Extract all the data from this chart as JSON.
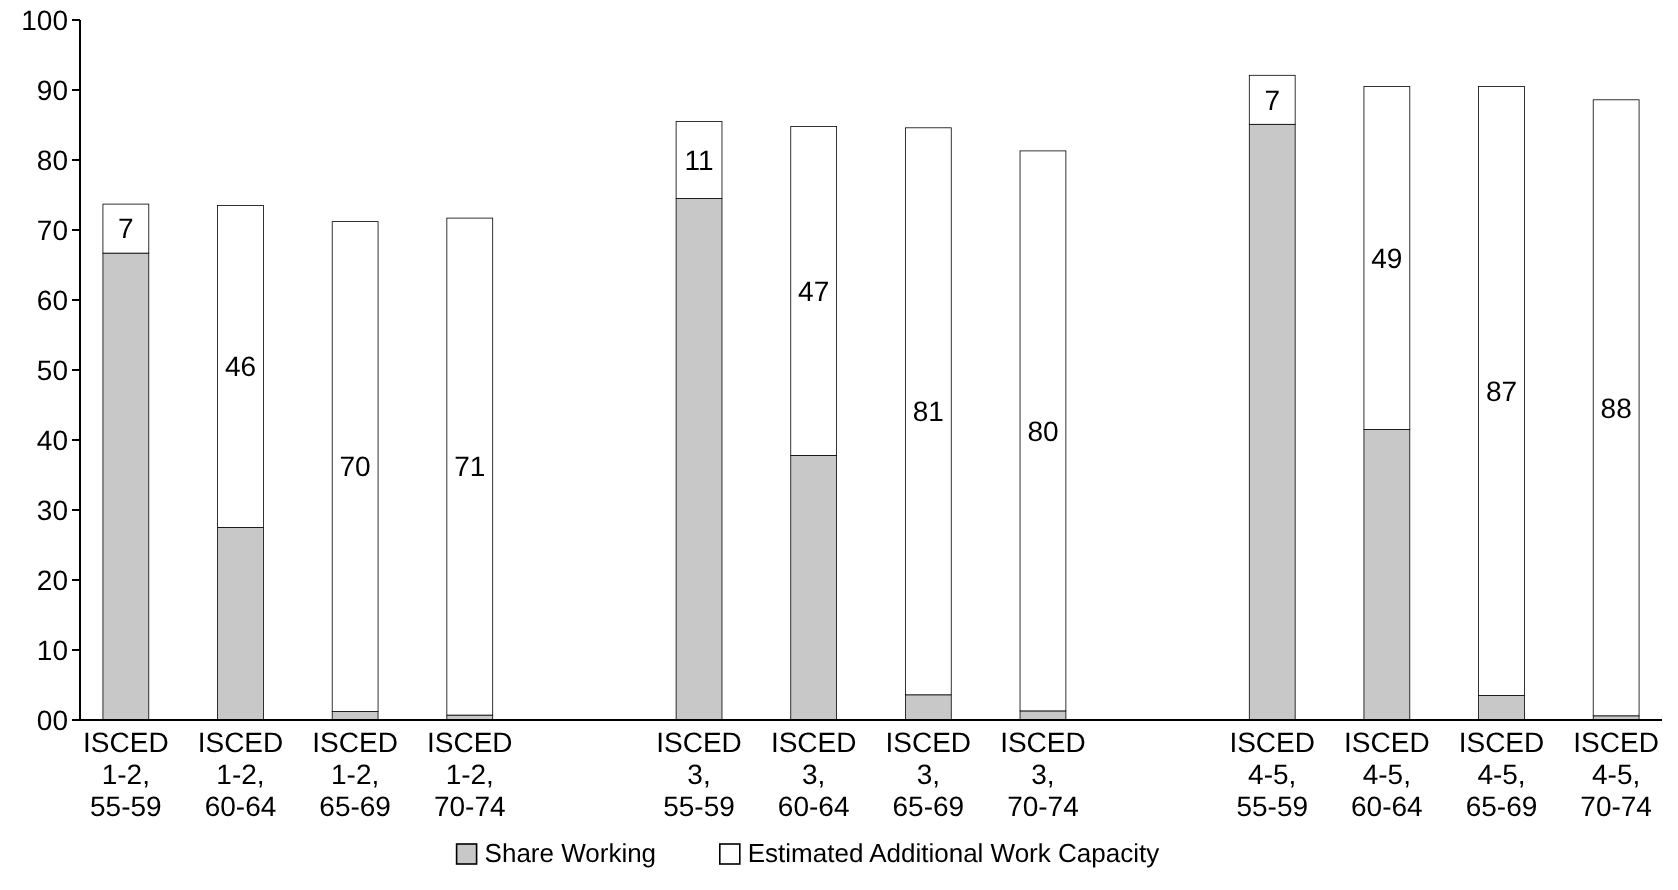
{
  "chart_data": {
    "type": "bar",
    "stacked": true,
    "categories": [
      "ISCED 1-2, 55-59",
      "ISCED 1-2, 60-64",
      "ISCED 1-2, 65-69",
      "ISCED 1-2, 70-74",
      null,
      "ISCED 3, 55-59",
      "ISCED 3, 60-64",
      "ISCED 3, 65-69",
      "ISCED 3, 70-74",
      null,
      "ISCED 4-5, 55-59",
      "ISCED 4-5, 60-64",
      "ISCED 4-5, 65-69",
      "ISCED 4-5, 70-74"
    ],
    "series": [
      {
        "name": "Share Working",
        "color": "#c8c8c8",
        "values": [
          66.7,
          27.5,
          1.2,
          0.7,
          null,
          74.5,
          37.8,
          3.6,
          1.3,
          null,
          85.1,
          41.5,
          3.5,
          0.6
        ]
      },
      {
        "name": "Estimated Additional Work Capacity",
        "color": "#ffffff",
        "values": [
          7,
          46,
          70,
          71,
          null,
          11,
          47,
          81,
          80,
          null,
          7,
          49,
          87,
          88
        ],
        "value_labels": [
          "7",
          "46",
          "70",
          "71",
          null,
          "11",
          "47",
          "81",
          "80",
          null,
          "7",
          "49",
          "87",
          "88"
        ]
      }
    ],
    "ylim": [
      0,
      100
    ],
    "yticks": [
      {
        "value": 0,
        "label": "00"
      },
      10,
      20,
      30,
      40,
      50,
      60,
      70,
      80,
      90,
      100
    ],
    "grid": false,
    "legend": "bottom"
  }
}
